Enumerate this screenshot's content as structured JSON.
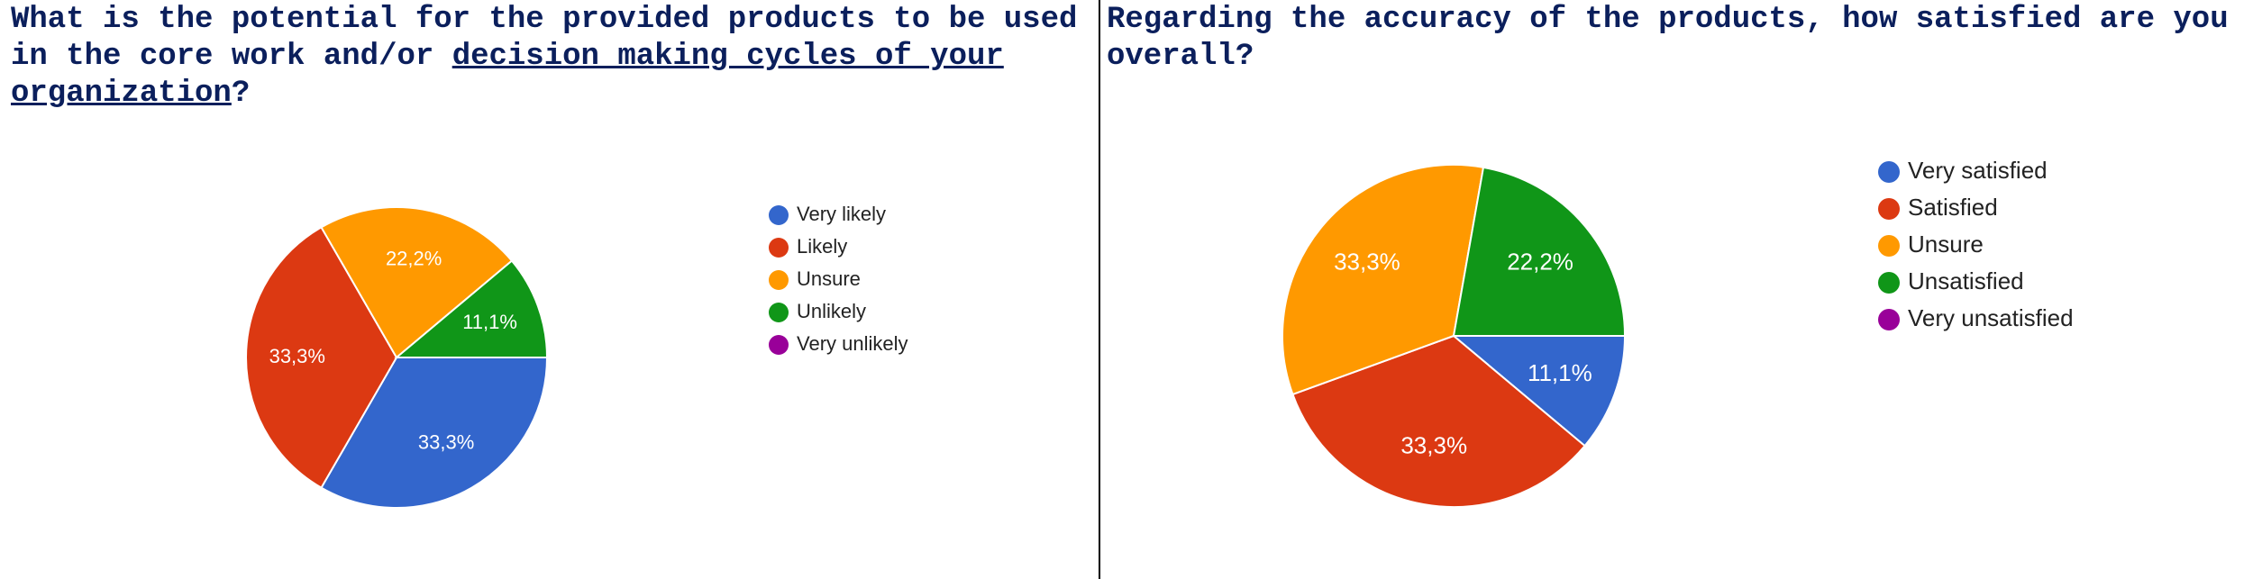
{
  "chart_data": [
    {
      "type": "pie",
      "title": [
        "What is the potential for the provided products to be used in the core work and/or",
        "decision making cycles of your organization",
        "?"
      ],
      "categories": [
        "Very likely",
        "Likely",
        "Unsure",
        "Unlikely",
        "Very unlikely"
      ],
      "values": [
        33.3,
        33.3,
        22.2,
        11.1,
        0
      ],
      "value_labels": [
        "33,3%",
        "33,3%",
        "22,2%",
        "11,1%",
        null
      ],
      "colors": [
        "#3366cc",
        "#dc3912",
        "#ff9900",
        "#109618",
        "#990099"
      ]
    },
    {
      "type": "pie",
      "title": "Regarding the accuracy of the products, how satisfied are you overall?",
      "categories": [
        "Very satisfied",
        "Satisfied",
        "Unsure",
        "Unsatisfied",
        "Very unsatisfied"
      ],
      "values": [
        11.1,
        33.3,
        33.3,
        22.2,
        0
      ],
      "value_labels": [
        "11,1%",
        "33,3%",
        "33,3%",
        "22,2%",
        null
      ],
      "colors": [
        "#3366cc",
        "#dc3912",
        "#ff9900",
        "#109618",
        "#990099"
      ]
    }
  ]
}
